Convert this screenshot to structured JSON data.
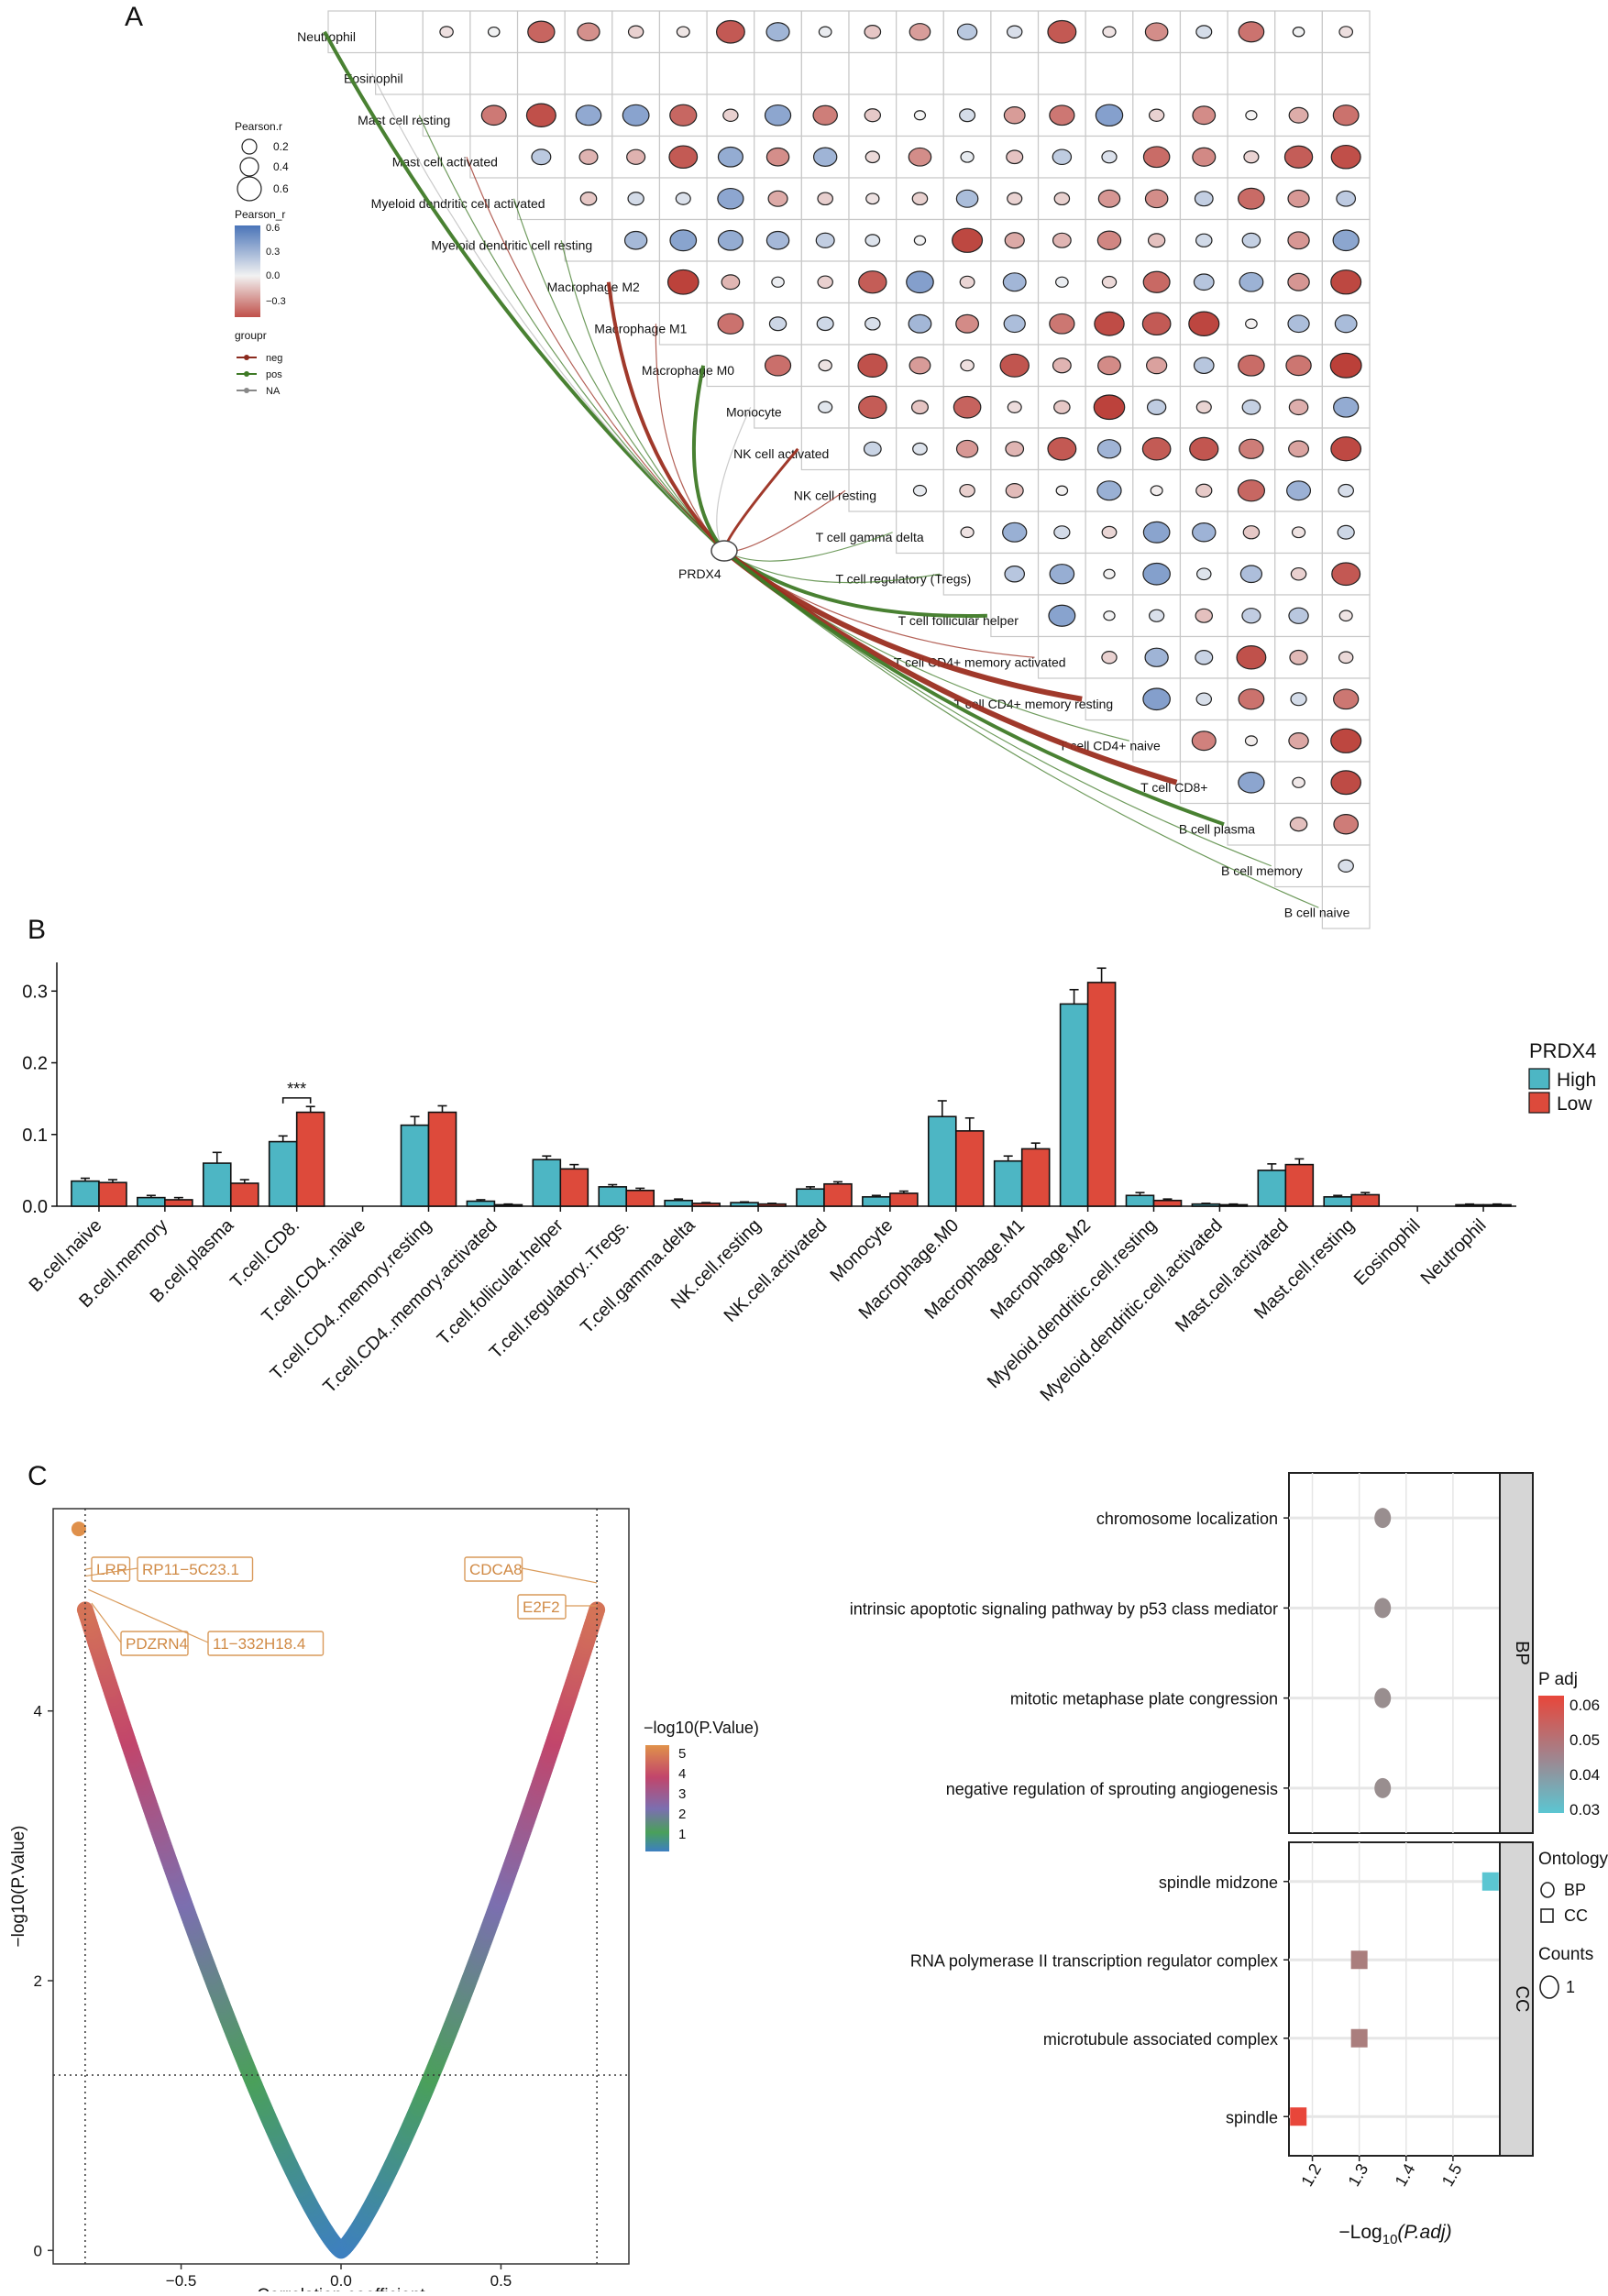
{
  "panelA": {
    "letter": "A",
    "cells": [
      "Neutrophil",
      "Eosinophil",
      "Mast cell resting",
      "Mast cell activated",
      "Myeloid dendritic cell activated",
      "Myeloid dendritic cell resting",
      "Macrophage M2",
      "Macrophage M1",
      "Macrophage M0",
      "Monocyte",
      "NK cell activated",
      "NK cell resting",
      "T cell gamma delta",
      "T cell regulatory (Tregs)",
      "T cell follicular helper",
      "T cell CD4+ memory activated",
      "T cell CD4+ memory resting",
      "T cell CD4+ naive",
      "T cell CD8+",
      "B cell plasma",
      "B cell memory",
      "B cell naive"
    ],
    "gene": "PRDX4",
    "legend": {
      "size_title": "Pearson.r",
      "size_labels": [
        "0.2",
        "0.4",
        "0.6"
      ],
      "color_title": "Pearson_r",
      "color_labels": [
        "0.6",
        "0.3",
        "0.0",
        "−0.3"
      ],
      "group_title": "groupr",
      "groups": [
        {
          "label": "neg",
          "color": "#8b2a1e"
        },
        {
          "label": "pos",
          "color": "#3f7a27"
        },
        {
          "label": "NA",
          "color": "#888888"
        }
      ]
    },
    "colors": {
      "positive": "#4a74b8",
      "negative": "#c0504a",
      "neg_line": "#9b2e20",
      "pos_line": "#3f7a27"
    }
  },
  "panelB": {
    "letter": "B",
    "legend_title": "PRDX4",
    "legend_labels": [
      "High",
      "Low"
    ],
    "significance": "***",
    "colors": {
      "high": "#4db6c4",
      "low": "#dd4a3b"
    }
  },
  "panelC": {
    "letter": "C",
    "xlabel": "Correlation coefficient",
    "ylabel": "−log10(P.Value)",
    "colorbar_title": "−log10(P.Value)",
    "colorbar_labels": [
      "5",
      "4",
      "3",
      "2",
      "1"
    ],
    "annotations": [
      "LRR",
      "RP11−5C23.1",
      "PDZRN4",
      "11−332H18.4",
      "CDCA8",
      "E2F2"
    ],
    "enrich": {
      "xlabel": "−Log",
      "xlabel_sub": "10",
      "xlabel_tail": "(P.adj)",
      "facets": [
        "BP",
        "CC"
      ],
      "padj_title": "P adj",
      "padj_labels": [
        "0.06",
        "0.05",
        "0.04",
        "0.03"
      ],
      "ontology_title": "Ontology",
      "ontology_labels": [
        "BP",
        "CC"
      ],
      "counts_title": "Counts",
      "counts_label": "1"
    }
  },
  "chart_data": [
    {
      "type": "heatmap",
      "title": "",
      "note": "Lower-triangle correlation matrix of immune cells (circle size=|r|, color=r) with links to PRDX4 colored by sign",
      "rows": [
        "Neutrophil",
        "Eosinophil",
        "Mast cell resting",
        "Mast cell activated",
        "Myeloid dendritic cell activated",
        "Myeloid dendritic cell resting",
        "Macrophage M2",
        "Macrophage M1",
        "Macrophage M0",
        "Monocyte",
        "NK cell activated",
        "NK cell resting",
        "T cell gamma delta",
        "T cell regulatory (Tregs)",
        "T cell follicular helper",
        "T cell CD4+ memory activated",
        "T cell CD4+ memory resting",
        "T cell CD4+ naive",
        "T cell CD8+",
        "B cell plasma",
        "B cell memory",
        "B cell naive"
      ],
      "links": [
        {
          "cell": "Neutrophil",
          "group": "pos",
          "strength": 3
        },
        {
          "cell": "Eosinophil",
          "group": "NA",
          "strength": 1
        },
        {
          "cell": "Mast cell resting",
          "group": "pos",
          "strength": 1
        },
        {
          "cell": "Mast cell activated",
          "group": "neg",
          "strength": 1
        },
        {
          "cell": "Myeloid dendritic cell activated",
          "group": "pos",
          "strength": 1
        },
        {
          "cell": "Myeloid dendritic cell resting",
          "group": "pos",
          "strength": 1
        },
        {
          "cell": "Macrophage M2",
          "group": "neg",
          "strength": 3
        },
        {
          "cell": "Macrophage M1",
          "group": "neg",
          "strength": 1
        },
        {
          "cell": "Macrophage M0",
          "group": "pos",
          "strength": 3
        },
        {
          "cell": "Monocyte",
          "group": "NA",
          "strength": 1
        },
        {
          "cell": "NK cell activated",
          "group": "neg",
          "strength": 2
        },
        {
          "cell": "NK cell resting",
          "group": "neg",
          "strength": 1
        },
        {
          "cell": "T cell gamma delta",
          "group": "pos",
          "strength": 1
        },
        {
          "cell": "T cell regulatory (Tregs)",
          "group": "pos",
          "strength": 1
        },
        {
          "cell": "T cell follicular helper",
          "group": "pos",
          "strength": 3
        },
        {
          "cell": "T cell CD4+ memory activated",
          "group": "neg",
          "strength": 1
        },
        {
          "cell": "T cell CD4+ memory resting",
          "group": "neg",
          "strength": 4
        },
        {
          "cell": "T cell CD4+ naive",
          "group": "pos",
          "strength": 1
        },
        {
          "cell": "T cell CD8+",
          "group": "neg",
          "strength": 4
        },
        {
          "cell": "B cell plasma",
          "group": "pos",
          "strength": 3
        },
        {
          "cell": "B cell memory",
          "group": "pos",
          "strength": 1
        },
        {
          "cell": "B cell naive",
          "group": "pos",
          "strength": 1
        }
      ]
    },
    {
      "type": "bar",
      "title": "",
      "categories": [
        "B.cell.naive",
        "B.cell.memory",
        "B.cell.plasma",
        "T.cell.CD8.",
        "T.cell.CD4..naive",
        "T.cell.CD4..memory.resting",
        "T.cell.CD4..memory.activated",
        "T.cell.follicular.helper",
        "T.cell.regulatory..Tregs.",
        "T.cell.gamma.delta",
        "NK.cell.resting",
        "NK.cell.activated",
        "Monocyte",
        "Macrophage.M0",
        "Macrophage.M1",
        "Macrophage.M2",
        "Myeloid.dendritic.cell.resting",
        "Myeloid.dendritic.cell.activated",
        "Mast.cell.activated",
        "Mast.cell.resting",
        "Eosinophil",
        "Neutrophil"
      ],
      "series": [
        {
          "name": "High",
          "values": [
            0.035,
            0.012,
            0.06,
            0.09,
            0,
            0.113,
            0.007,
            0.065,
            0.027,
            0.008,
            0.005,
            0.024,
            0.013,
            0.125,
            0.063,
            0.282,
            0.015,
            0.003,
            0.05,
            0.013,
            0,
            0.002
          ],
          "errors": [
            0.004,
            0.003,
            0.015,
            0.008,
            0,
            0.012,
            0.002,
            0.005,
            0.003,
            0.002,
            0.001,
            0.003,
            0.002,
            0.022,
            0.007,
            0.02,
            0.004,
            0.001,
            0.009,
            0.002,
            0,
            0.001
          ]
        },
        {
          "name": "Low",
          "values": [
            0.033,
            0.009,
            0.032,
            0.131,
            0,
            0.131,
            0.002,
            0.052,
            0.022,
            0.004,
            0.003,
            0.031,
            0.018,
            0.105,
            0.08,
            0.312,
            0.008,
            0.002,
            0.058,
            0.016,
            0,
            0.002
          ],
          "errors": [
            0.004,
            0.003,
            0.005,
            0.008,
            0,
            0.009,
            0.001,
            0.006,
            0.003,
            0.001,
            0.001,
            0.003,
            0.003,
            0.018,
            0.008,
            0.02,
            0.002,
            0.001,
            0.008,
            0.003,
            0,
            0.001
          ]
        }
      ],
      "ylim": [
        0,
        0.34
      ],
      "yticks": [
        "0.0",
        "0.1",
        "0.2",
        "0.3"
      ],
      "significance": {
        "category": "T.cell.CD8.",
        "label": "***"
      }
    },
    {
      "type": "scatter",
      "title": "",
      "xlabel": "Correlation coefficient",
      "ylabel": "−log10(P.Value)",
      "xlim": [
        -0.9,
        0.9
      ],
      "ylim": [
        -0.1,
        5.5
      ],
      "xticks": [
        "−0.5",
        "0.0",
        "0.5"
      ],
      "yticks": [
        "0",
        "2",
        "4"
      ],
      "hlines": [
        1.3
      ],
      "vlines": [
        -0.8,
        0.8
      ],
      "labeled_points": [
        {
          "label": "LRR",
          "x": -0.8,
          "y": 5.05
        },
        {
          "label": "RP11−5C23.1",
          "x": -0.8,
          "y": 5.0
        },
        {
          "label": "PDZRN4",
          "x": -0.78,
          "y": 4.8
        },
        {
          "label": "11−332H18.4",
          "x": -0.79,
          "y": 4.9
        },
        {
          "label": "CDCA8",
          "x": 0.8,
          "y": 4.95
        },
        {
          "label": "E2F2",
          "x": 0.8,
          "y": 4.78
        }
      ],
      "top_point": {
        "x": -0.82,
        "y": 5.35
      }
    },
    {
      "type": "scatter",
      "title": "",
      "xlabel": "−Log10(P.adj)",
      "xlim": [
        1.15,
        1.6
      ],
      "xticks": [
        "1.2",
        "1.3",
        "1.4",
        "1.5"
      ],
      "facets": [
        {
          "name": "BP",
          "terms": [
            {
              "term": "chromosome localization",
              "x": 1.35,
              "padj": 0.045,
              "count": 1,
              "ontology": "BP"
            },
            {
              "term": "intrinsic apoptotic signaling pathway by p53 class mediator",
              "x": 1.35,
              "padj": 0.045,
              "count": 1,
              "ontology": "BP"
            },
            {
              "term": "mitotic metaphase plate congression",
              "x": 1.35,
              "padj": 0.045,
              "count": 1,
              "ontology": "BP"
            },
            {
              "term": "negative regulation of sprouting angiogenesis",
              "x": 1.35,
              "padj": 0.045,
              "count": 1,
              "ontology": "BP"
            }
          ]
        },
        {
          "name": "CC",
          "terms": [
            {
              "term": "spindle midzone",
              "x": 1.58,
              "padj": 0.027,
              "count": 1,
              "ontology": "CC"
            },
            {
              "term": "RNA polymerase II transcription regulator complex",
              "x": 1.3,
              "padj": 0.05,
              "count": 1,
              "ontology": "CC"
            },
            {
              "term": "microtubule associated complex",
              "x": 1.3,
              "padj": 0.05,
              "count": 1,
              "ontology": "CC"
            },
            {
              "term": "spindle",
              "x": 1.17,
              "padj": 0.068,
              "count": 1,
              "ontology": "CC"
            }
          ]
        }
      ],
      "padj_range": [
        0.027,
        0.068
      ]
    }
  ]
}
